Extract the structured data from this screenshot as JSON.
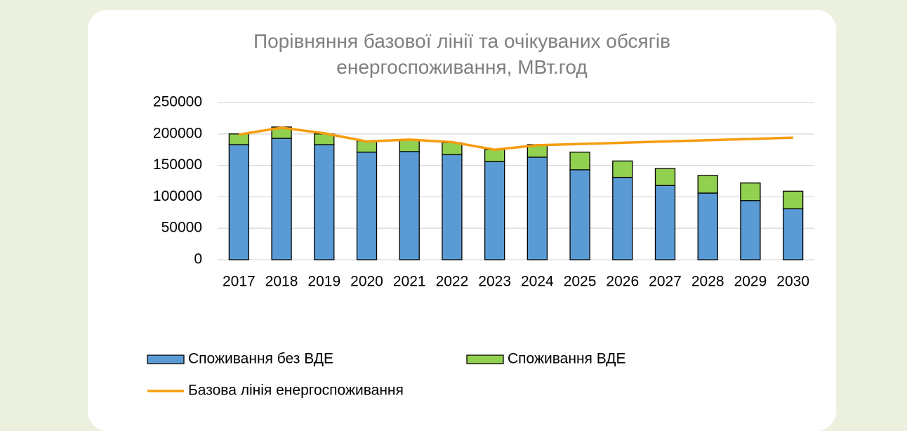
{
  "chart_data": {
    "type": "bar+line",
    "title": "Порівняння базової лінії та очікуваних обсягів енергоспоживання, МВт.год",
    "categories": [
      "2017",
      "2018",
      "2019",
      "2020",
      "2021",
      "2022",
      "2023",
      "2024",
      "2025",
      "2026",
      "2027",
      "2028",
      "2029",
      "2030"
    ],
    "series": [
      {
        "name": "Споживання без ВДЕ",
        "type": "bar",
        "color": "#5b9bd5",
        "values": [
          183000,
          193000,
          183000,
          171000,
          172000,
          167000,
          156000,
          163000,
          143000,
          131000,
          118000,
          106000,
          94000,
          81000
        ]
      },
      {
        "name": "Споживання ВДЕ",
        "type": "bar",
        "color": "#92d050",
        "values": [
          17000,
          18000,
          17000,
          18000,
          19000,
          19000,
          19000,
          20000,
          28000,
          26000,
          27000,
          28000,
          28000,
          28000
        ]
      },
      {
        "name": "Базова лінія енергоспоживання",
        "type": "line",
        "color": "#f59d0e",
        "values": [
          199000,
          210000,
          201000,
          188000,
          191000,
          187000,
          175000,
          182000,
          184000,
          186000,
          188000,
          190000,
          192000,
          194000
        ]
      }
    ],
    "stacked": true,
    "ylim": [
      0,
      250000
    ],
    "yticks": [
      0,
      50000,
      100000,
      150000,
      200000,
      250000
    ],
    "grid": true,
    "legend": "bottom"
  }
}
